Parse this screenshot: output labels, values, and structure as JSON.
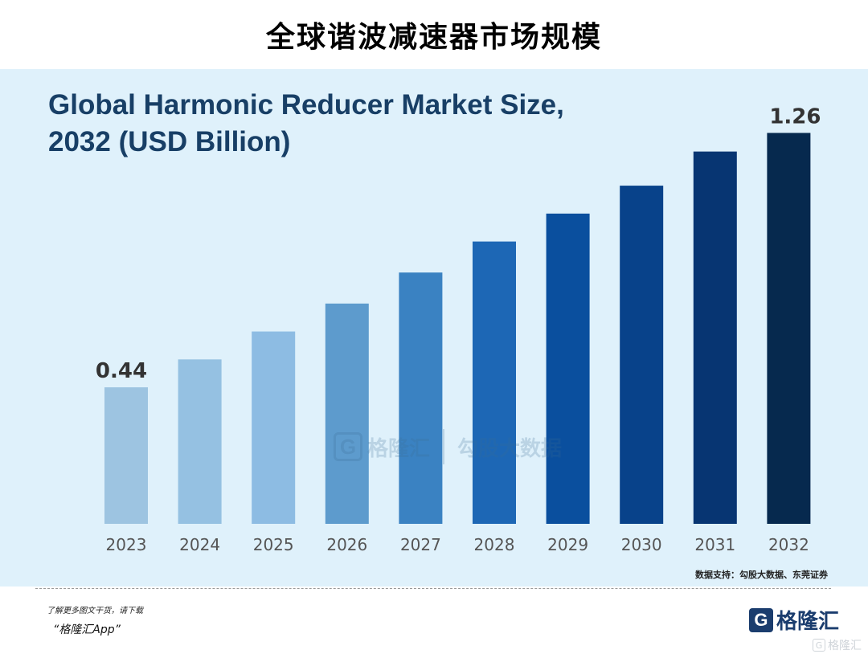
{
  "page_title": "全球谐波减速器市场规模",
  "chart_data": {
    "type": "bar",
    "title": "Global Harmonic Reducer Market Size, 2032 (USD Billion)",
    "xlabel": "",
    "ylabel": "",
    "categories": [
      "2023",
      "2024",
      "2025",
      "2026",
      "2027",
      "2028",
      "2029",
      "2030",
      "2031",
      "2032"
    ],
    "values": [
      0.44,
      0.53,
      0.62,
      0.71,
      0.81,
      0.91,
      1.0,
      1.09,
      1.2,
      1.26
    ],
    "data_labels": {
      "2023": "0.44",
      "2032": "1.26"
    },
    "ylim": [
      0,
      1.3
    ],
    "grid": false,
    "colors": [
      "#9dc4e1",
      "#95c1e2",
      "#8dbce3",
      "#5d9bcd",
      "#3a82c2",
      "#1d67b5",
      "#0a4f9e",
      "#08428a",
      "#073572",
      "#06294e"
    ]
  },
  "watermark": {
    "logo": "G",
    "brand_text": "格隆汇",
    "data_text": "勾股大数据"
  },
  "source": "数据支持：勾股大数据、东莞证券",
  "promo": {
    "line": "了解更多图文干货，请下载",
    "app": "“格隆汇App”"
  },
  "brand": {
    "logo": "G",
    "text": "格隆汇"
  },
  "corner_brand": {
    "logo": "G",
    "text": "格隆汇"
  }
}
